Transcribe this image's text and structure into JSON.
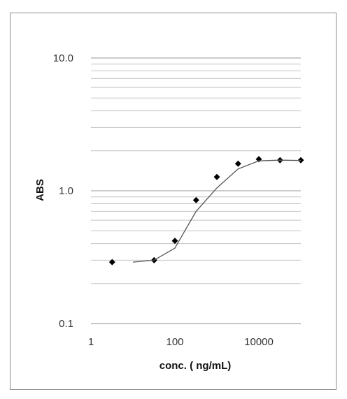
{
  "chart_data": {
    "type": "scatter",
    "title": "",
    "xlabel": "conc. ( ng/mL)",
    "ylabel": "ABS",
    "x_scale": "log",
    "y_scale": "log",
    "xlim": [
      1,
      100000
    ],
    "ylim": [
      0.1,
      10
    ],
    "x_tick_labels": [
      {
        "value": 1,
        "label": "1"
      },
      {
        "value": 100,
        "label": "100"
      },
      {
        "value": 10000,
        "label": "10000"
      }
    ],
    "y_tick_labels": [
      {
        "value": 0.1,
        "label": "0.1"
      },
      {
        "value": 1,
        "label": "1.0"
      },
      {
        "value": 10,
        "label": "10.0"
      }
    ],
    "grid": "horizontal major and minor",
    "legend": "none",
    "series": [
      {
        "type": "scatter",
        "marker": "diamond",
        "color": "#000000",
        "x": [
          3.2,
          32,
          100,
          320,
          1000,
          3200,
          10000,
          32000,
          100000
        ],
        "y": [
          0.29,
          0.3,
          0.42,
          0.85,
          1.27,
          1.6,
          1.73,
          1.7,
          1.7
        ]
      },
      {
        "type": "line",
        "color": "#555555",
        "x": [
          10,
          32,
          100,
          320,
          1000,
          3200,
          10000,
          32000,
          100000
        ],
        "y": [
          0.29,
          0.3,
          0.37,
          0.7,
          1.05,
          1.46,
          1.68,
          1.7,
          1.69
        ]
      }
    ]
  }
}
